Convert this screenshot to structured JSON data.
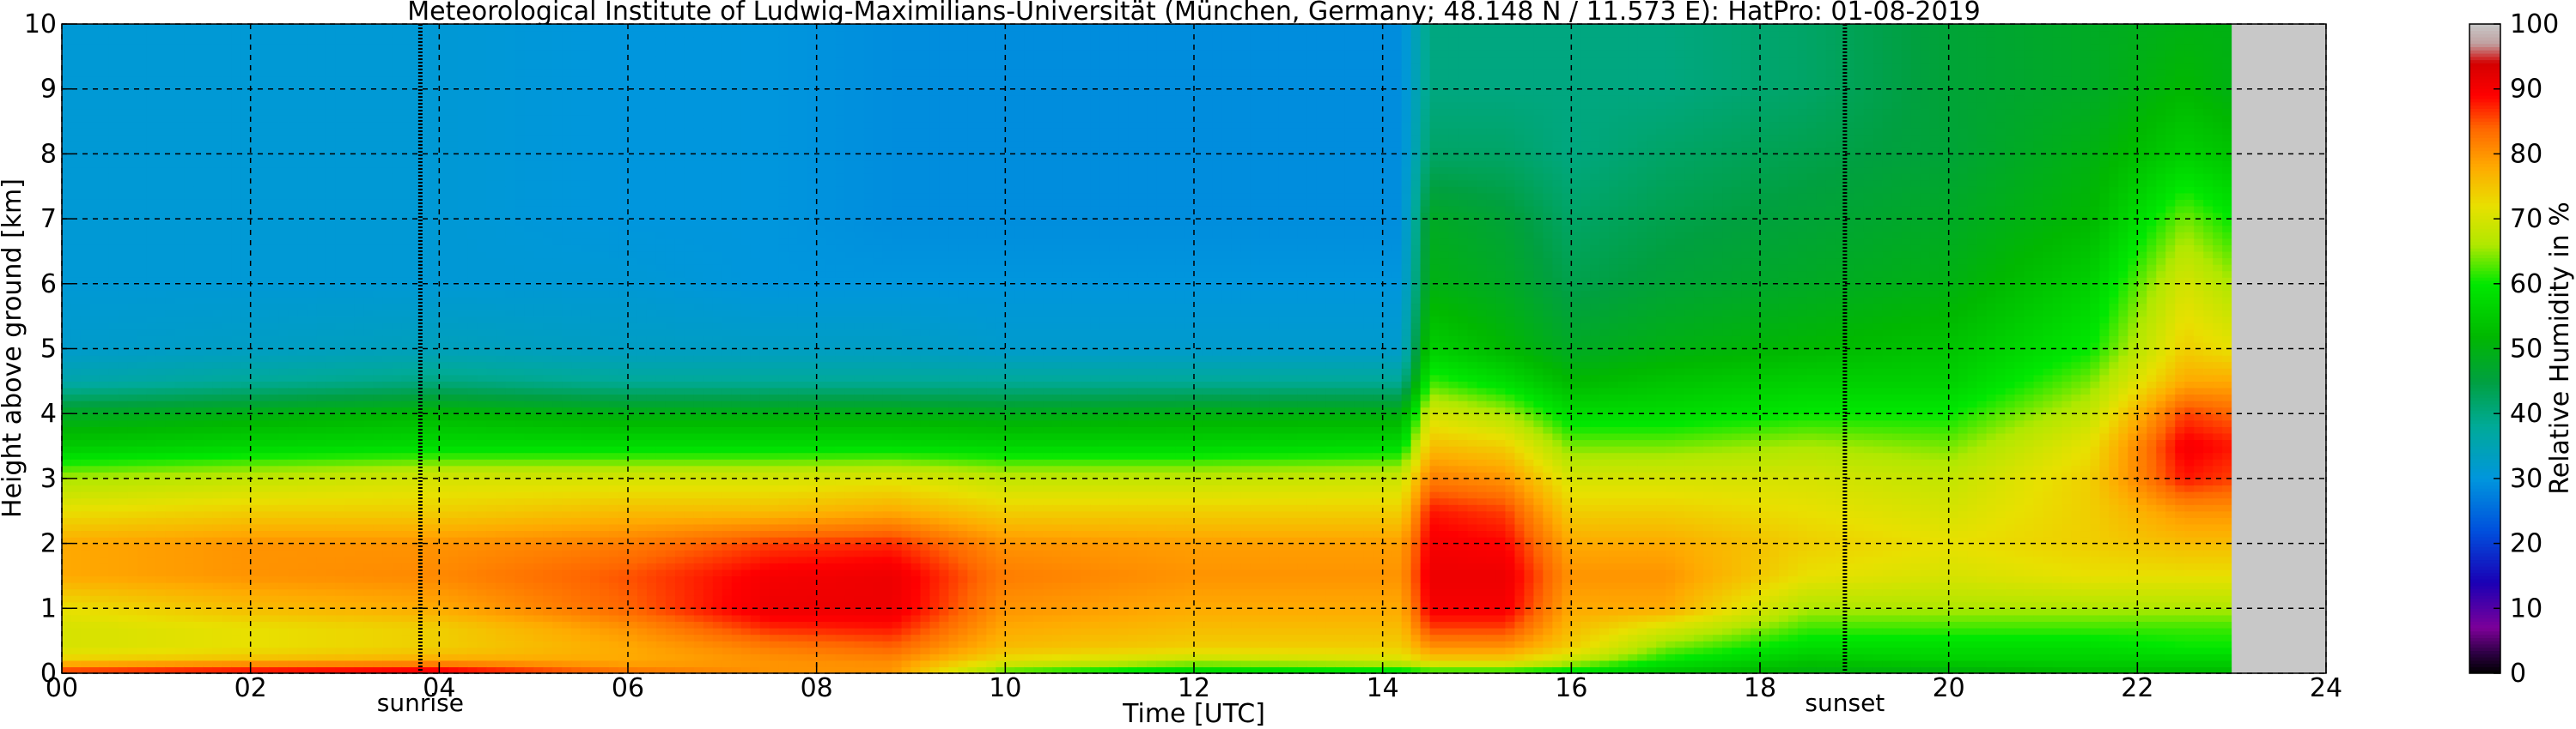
{
  "chart_data": {
    "type": "heatmap",
    "title": "Meteorological Institute of Ludwig-Maximilians-Universität (München, Germany; 48.148 N / 11.573 E):    HatPro: 01-08-2019",
    "xlabel": "Time [UTC]",
    "ylabel": "Height above ground [km]",
    "xlim": [
      0,
      24
    ],
    "ylim": [
      0,
      10
    ],
    "x_ticks": [
      "00",
      "02",
      "04",
      "06",
      "08",
      "10",
      "12",
      "14",
      "16",
      "18",
      "20",
      "22",
      "24"
    ],
    "y_ticks": [
      "0",
      "1",
      "2",
      "3",
      "4",
      "5",
      "6",
      "7",
      "8",
      "9",
      "10"
    ],
    "grid": true,
    "data_end_hour": 23.0,
    "no_data_color": "#c8c8c8",
    "markers": [
      {
        "label": "sunrise",
        "hour": 3.8
      },
      {
        "label": "sunset",
        "hour": 18.9
      }
    ],
    "colorbar": {
      "label": "Relative Humidity in %",
      "ticks": [
        "0",
        "10",
        "20",
        "30",
        "40",
        "50",
        "60",
        "70",
        "80",
        "90",
        "100"
      ],
      "stops": [
        {
          "value": 0,
          "color": "#000000"
        },
        {
          "value": 3,
          "color": "#2a0040"
        },
        {
          "value": 7,
          "color": "#7d0099"
        },
        {
          "value": 14,
          "color": "#1a00b5"
        },
        {
          "value": 22,
          "color": "#0050dd"
        },
        {
          "value": 30,
          "color": "#0096dd"
        },
        {
          "value": 38,
          "color": "#00aa99"
        },
        {
          "value": 45,
          "color": "#00a040"
        },
        {
          "value": 52,
          "color": "#00b800"
        },
        {
          "value": 60,
          "color": "#00e800"
        },
        {
          "value": 66,
          "color": "#b0e800"
        },
        {
          "value": 72,
          "color": "#e8e000"
        },
        {
          "value": 78,
          "color": "#ffaa00"
        },
        {
          "value": 84,
          "color": "#ff6600"
        },
        {
          "value": 89,
          "color": "#ff0000"
        },
        {
          "value": 94,
          "color": "#d40000"
        },
        {
          "value": 97,
          "color": "#c0a0a0"
        },
        {
          "value": 100,
          "color": "#c8c8c8"
        }
      ]
    },
    "profile_heights_km": [
      0.0,
      0.1,
      0.2,
      0.4,
      0.7,
      1.0,
      1.5,
      2.0,
      2.5,
      3.0,
      3.5,
      4.0,
      4.5,
      5.0,
      6.0,
      7.0,
      8.0,
      9.0,
      10.0
    ],
    "profiles": [
      {
        "hour": 0.0,
        "rh": [
          88,
          82,
          74,
          70,
          70,
          72,
          78,
          78,
          72,
          66,
          55,
          48,
          36,
          32,
          31,
          31,
          31,
          31,
          31
        ]
      },
      {
        "hour": 2.0,
        "rh": [
          90,
          85,
          76,
          72,
          72,
          76,
          80,
          80,
          74,
          68,
          57,
          50,
          38,
          33,
          31,
          31,
          31,
          31,
          31
        ]
      },
      {
        "hour": 4.0,
        "rh": [
          92,
          86,
          78,
          74,
          74,
          78,
          81,
          80,
          74,
          70,
          58,
          52,
          40,
          34,
          31,
          31,
          31,
          31,
          31
        ]
      },
      {
        "hour": 6.0,
        "rh": [
          84,
          80,
          78,
          78,
          80,
          84,
          85,
          82,
          76,
          70,
          58,
          50,
          38,
          33,
          31,
          30,
          30,
          30,
          30
        ]
      },
      {
        "hour": 7.5,
        "rh": [
          80,
          80,
          80,
          82,
          87,
          91,
          90,
          86,
          76,
          70,
          58,
          50,
          38,
          33,
          30,
          30,
          30,
          30,
          30
        ]
      },
      {
        "hour": 8.8,
        "rh": [
          80,
          80,
          81,
          84,
          88,
          91,
          91,
          87,
          78,
          71,
          58,
          50,
          38,
          33,
          30,
          29,
          29,
          29,
          29
        ]
      },
      {
        "hour": 10.0,
        "rh": [
          62,
          66,
          72,
          76,
          78,
          80,
          82,
          80,
          74,
          68,
          57,
          49,
          38,
          32,
          30,
          29,
          29,
          29,
          29
        ]
      },
      {
        "hour": 12.0,
        "rh": [
          56,
          60,
          68,
          74,
          76,
          78,
          80,
          79,
          74,
          68,
          57,
          50,
          38,
          32,
          30,
          29,
          29,
          29,
          29
        ]
      },
      {
        "hour": 14.2,
        "rh": [
          58,
          62,
          70,
          74,
          76,
          78,
          80,
          79,
          74,
          69,
          58,
          50,
          38,
          32,
          30,
          29,
          29,
          29,
          29
        ]
      },
      {
        "hour": 14.5,
        "rh": [
          60,
          66,
          74,
          80,
          86,
          90,
          91,
          90,
          88,
          82,
          76,
          70,
          62,
          56,
          50,
          48,
          42,
          40,
          40
        ]
      },
      {
        "hour": 15.3,
        "rh": [
          60,
          66,
          74,
          80,
          86,
          90,
          91,
          89,
          86,
          80,
          74,
          66,
          58,
          52,
          48,
          46,
          42,
          40,
          40
        ]
      },
      {
        "hour": 16.0,
        "rh": [
          58,
          62,
          68,
          74,
          76,
          78,
          80,
          78,
          74,
          70,
          64,
          58,
          52,
          48,
          44,
          42,
          40,
          40,
          40
        ]
      },
      {
        "hour": 17.0,
        "rh": [
          54,
          56,
          60,
          64,
          70,
          78,
          80,
          78,
          74,
          70,
          64,
          58,
          54,
          50,
          46,
          44,
          42,
          40,
          40
        ]
      },
      {
        "hour": 18.5,
        "rh": [
          50,
          52,
          54,
          58,
          62,
          66,
          72,
          74,
          72,
          70,
          66,
          60,
          56,
          52,
          48,
          46,
          44,
          42,
          42
        ]
      },
      {
        "hour": 20.0,
        "rh": [
          50,
          52,
          56,
          58,
          62,
          66,
          70,
          72,
          70,
          68,
          64,
          60,
          56,
          54,
          50,
          48,
          46,
          46,
          46
        ]
      },
      {
        "hour": 21.5,
        "rh": [
          52,
          54,
          56,
          58,
          62,
          66,
          72,
          74,
          74,
          74,
          72,
          68,
          64,
          60,
          56,
          52,
          50,
          48,
          48
        ]
      },
      {
        "hour": 22.5,
        "rh": [
          52,
          54,
          56,
          60,
          62,
          66,
          72,
          76,
          80,
          88,
          90,
          86,
          78,
          74,
          70,
          64,
          56,
          52,
          50
        ]
      },
      {
        "hour": 23.0,
        "rh": [
          52,
          54,
          56,
          60,
          62,
          66,
          72,
          76,
          80,
          86,
          88,
          84,
          78,
          72,
          66,
          60,
          54,
          50,
          50
        ]
      }
    ]
  }
}
